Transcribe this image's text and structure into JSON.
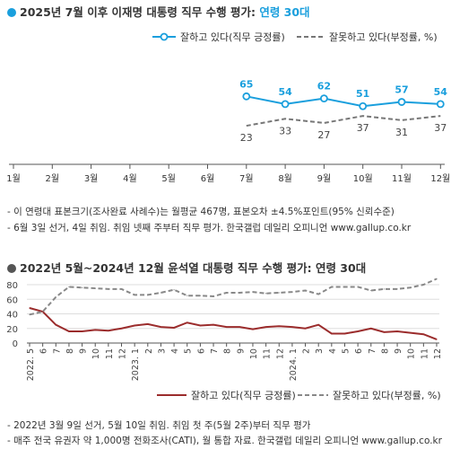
{
  "chart1": {
    "title_main": "2025년 7월 이후 이재명 대통령 직무 수행 평가: ",
    "title_highlight": "연령 30대",
    "highlight_color": "#1a9fdd",
    "dot_color": "#1a9fdd",
    "notes": [
      "- 이 연령대 표본크기(조사완료 사례수)는 월평균 467명, 표본오차 ±4.5%포인트(95% 신뢰수준)",
      "- 6월 3일 선거, 4일 취임. 취임 넷째 주부터 직무 평가. 한국갤럽 데일리 오피니언 www.gallup.co.kr"
    ]
  },
  "chart2": {
    "title_main": "2022년 5월~2024년 12월 윤석열 대통령 직무 수행 평가: 연령 30대",
    "dot_color": "#555555",
    "notes": [
      "- 2022년 3월 9일 선거, 5월 10일 취임. 취임 첫 주(5월 2주)부터 직무 평가",
      "- 매주 전국 유권자 약 1,000명 전화조사(CATI), 월 통합 자료. 한국갤럽 데일리 오피니언 www.gallup.co.kr"
    ]
  },
  "chart_data": [
    {
      "type": "line",
      "x_labels": [
        "1월",
        "2월",
        "3월",
        "4월",
        "5월",
        "6월",
        "7월",
        "8월",
        "9월",
        "10월",
        "11월",
        "12월"
      ],
      "series": [
        {
          "name": "잘하고 있다(직무 긍정률)",
          "color": "#1a9fdd",
          "style": "solid",
          "label_color": "#1a9fdd",
          "x_index": [
            6,
            7,
            8,
            9,
            10,
            11
          ],
          "values": [
            65,
            54,
            62,
            51,
            57,
            54
          ]
        },
        {
          "name": "잘못하고 있다(부정률, %)",
          "color": "#777777",
          "style": "dashed",
          "label_color": "#444444",
          "x_index": [
            6,
            7,
            8,
            9,
            10,
            11
          ],
          "values": [
            23,
            33,
            27,
            37,
            31,
            37
          ]
        }
      ],
      "grid": false,
      "legend": "top-right"
    },
    {
      "type": "line",
      "x_labels": [
        "2022. 5",
        "6",
        "7",
        "8",
        "9",
        "10",
        "11",
        "12",
        "2023. 1",
        "2",
        "3",
        "4",
        "5",
        "6",
        "7",
        "8",
        "9",
        "10",
        "11",
        "12",
        "2024. 1",
        "2",
        "3",
        "4",
        "5",
        "6",
        "7",
        "8",
        "9",
        "10",
        "11",
        "12"
      ],
      "yticks": [
        0,
        20,
        40,
        60,
        80
      ],
      "ylim": [
        0,
        90
      ],
      "series": [
        {
          "name": "잘하고 있다(직무 긍정률)",
          "color": "#9b2c2c",
          "style": "solid",
          "values": [
            48,
            43,
            25,
            16,
            16,
            18,
            17,
            20,
            24,
            26,
            22,
            21,
            28,
            24,
            25,
            22,
            22,
            19,
            22,
            23,
            22,
            20,
            25,
            13,
            13,
            16,
            20,
            15,
            16,
            14,
            12,
            5
          ]
        },
        {
          "name": "잘못하고 있다(부정률, %)",
          "color": "#888888",
          "style": "dashed",
          "values": [
            39,
            43,
            63,
            77,
            76,
            75,
            74,
            74,
            66,
            66,
            69,
            73,
            65,
            65,
            64,
            69,
            69,
            70,
            68,
            69,
            70,
            72,
            67,
            77,
            77,
            77,
            72,
            74,
            74,
            76,
            80,
            88
          ]
        }
      ],
      "grid": true,
      "legend": "bottom"
    }
  ]
}
